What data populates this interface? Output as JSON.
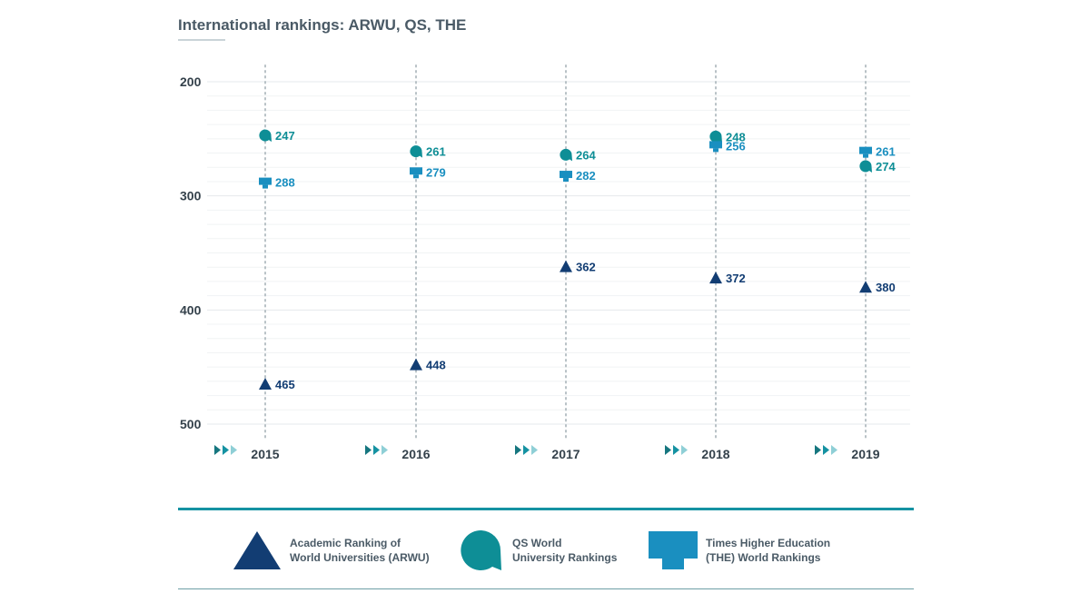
{
  "chart_data": {
    "type": "scatter",
    "title": "International rankings: ARWU, QS, THE",
    "xlabel": "",
    "ylabel": "",
    "inverted_y": true,
    "ylim": [
      200,
      500
    ],
    "yticks": [
      "200",
      "300",
      "400",
      "500"
    ],
    "categories": [
      "2015",
      "2016",
      "2017",
      "2018",
      "2019"
    ],
    "series": [
      {
        "name": "Academic Ranking of World Universities (ARWU)",
        "marker": "triangle",
        "color": "#123d73",
        "values": [
          465,
          448,
          362,
          372,
          380
        ]
      },
      {
        "name": "QS World University Rankings",
        "marker": "bubble",
        "color": "#0e8e96",
        "values": [
          247,
          261,
          264,
          248,
          274
        ]
      },
      {
        "name": "Times Higher Education (THE) World Rankings",
        "marker": "monitor",
        "color": "#1a8fc0",
        "values": [
          288,
          279,
          282,
          256,
          261
        ]
      }
    ]
  },
  "legend": {
    "arwu": {
      "line1": "Academic Ranking of",
      "line2": "World Universities (ARWU)"
    },
    "qs": {
      "line1": "QS World",
      "line2": "University Rankings"
    },
    "the": {
      "line1": "Times Higher Education",
      "line2": "(THE) World Rankings"
    }
  },
  "colors": {
    "arwu": "#123d73",
    "qs": "#0e8e96",
    "the": "#1a8fc0",
    "accent": "#1592a2"
  }
}
